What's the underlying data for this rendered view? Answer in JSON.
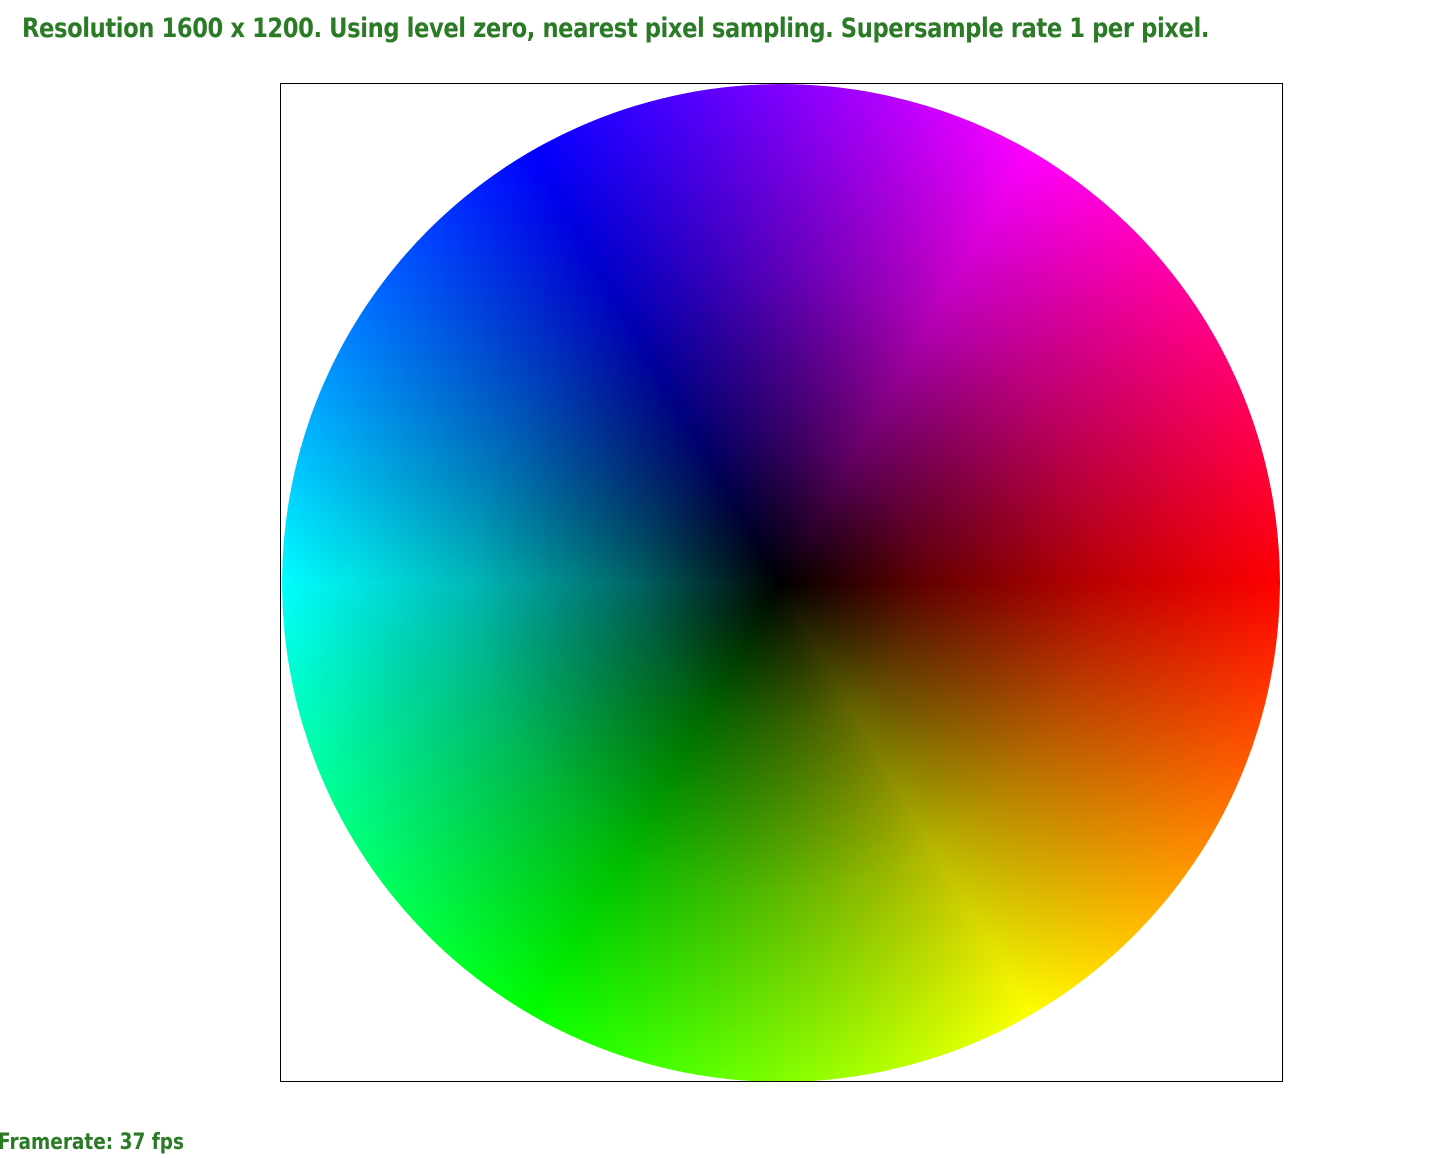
{
  "header": {
    "status_text": "Resolution 1600 x 1200. Using level zero, nearest pixel sampling. Supersample rate 1 per pixel."
  },
  "footer": {
    "framerate_text": "Framerate: 37 fps"
  },
  "colors": {
    "text": "#2a7a26",
    "viewport_border": "#000000",
    "background": "#ffffff"
  },
  "wheel": {
    "hue_stops": [
      "#ff0000",
      "#ffff00",
      "#00ff00",
      "#00ffff",
      "#0000ff",
      "#ff00ff"
    ],
    "center_color": "#000000"
  }
}
